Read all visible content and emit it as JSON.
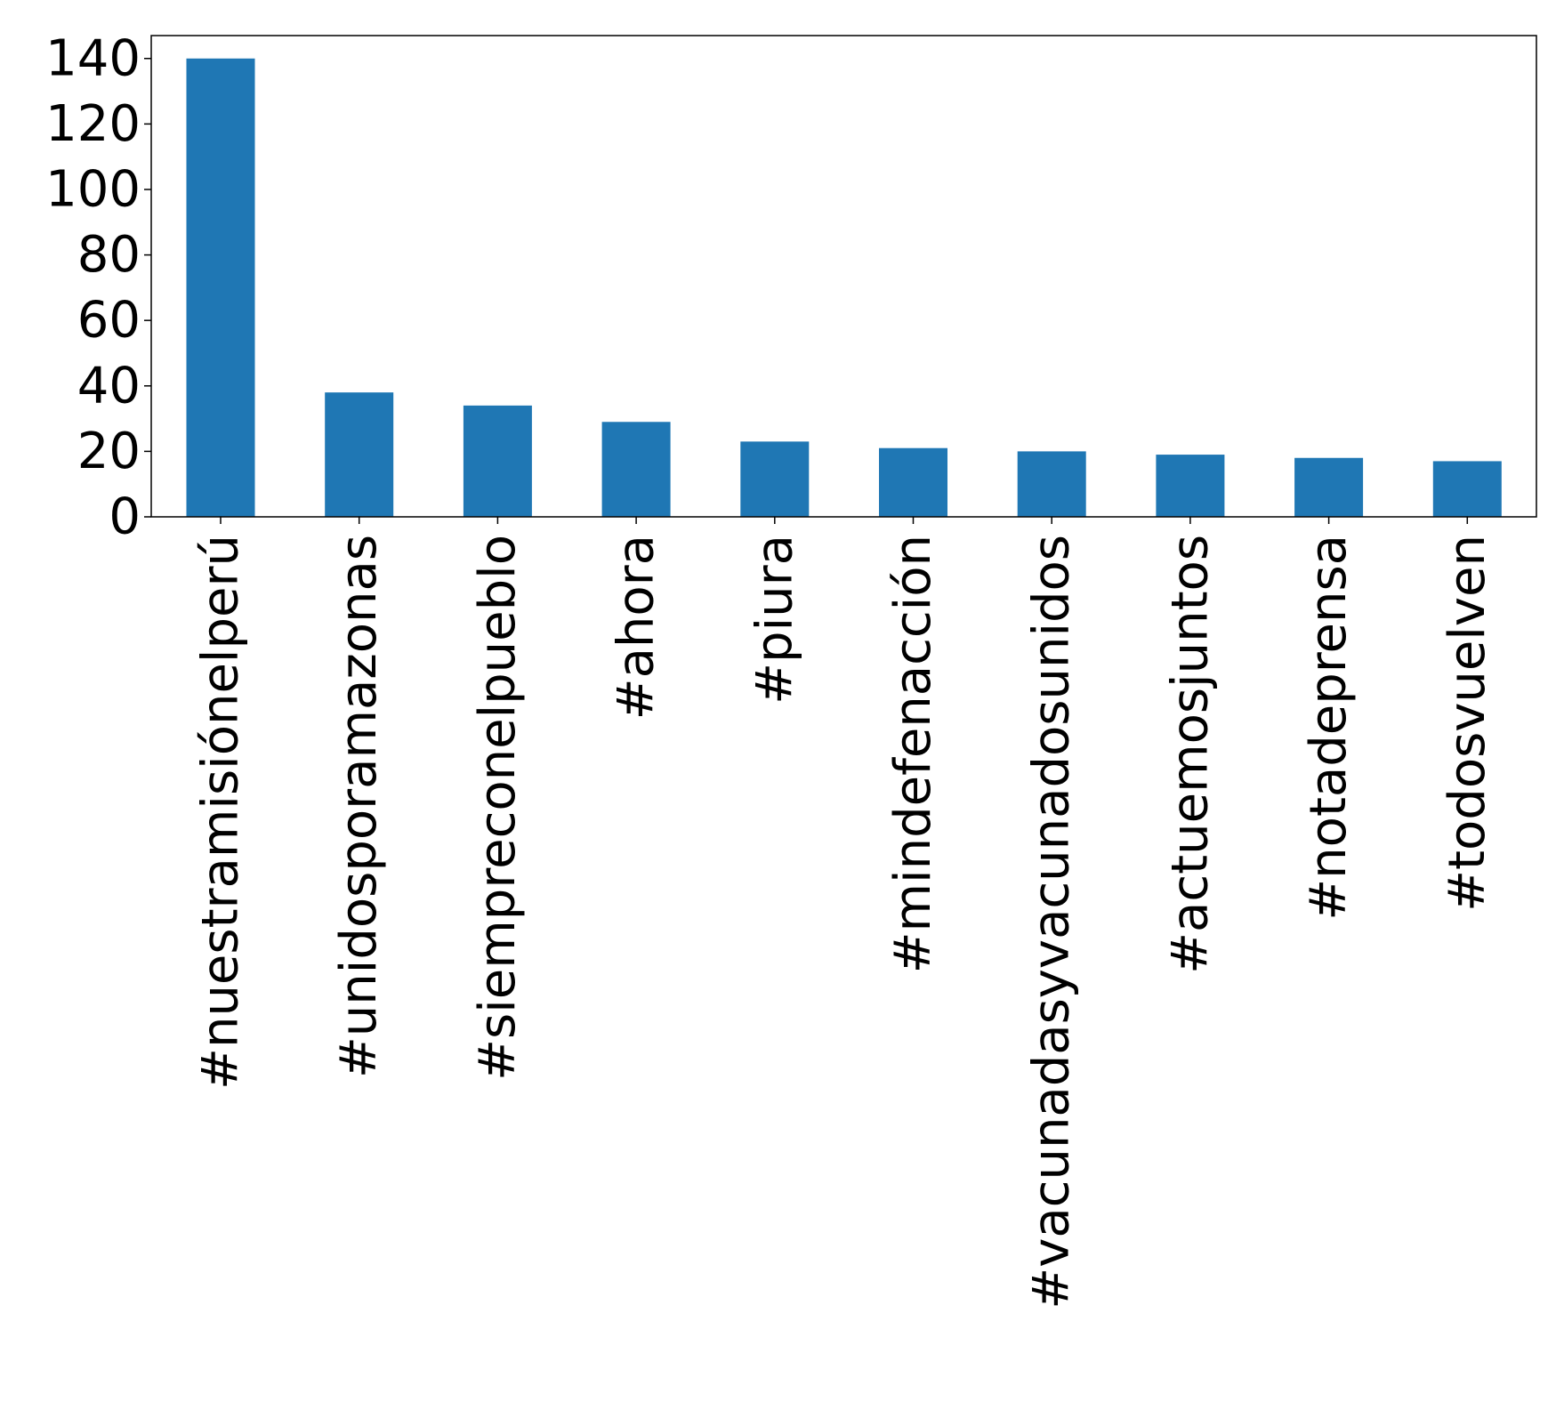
{
  "chart_data": {
    "type": "bar",
    "title": "",
    "xlabel": "",
    "ylabel": "",
    "categories": [
      "#nuestramisiónelperú",
      "#unidosporamazonas",
      "#siempreconelpueblo",
      "#ahora",
      "#piura",
      "#mindefenacción",
      "#vacunadasyvacunadosunidos",
      "#actuemosjuntos",
      "#notadeprensa",
      "#todosvuelven"
    ],
    "values": [
      140,
      38,
      34,
      29,
      23,
      21,
      20,
      19,
      18,
      17
    ],
    "ylim": [
      0,
      147
    ],
    "yticks": [
      0,
      20,
      40,
      60,
      80,
      100,
      120,
      140
    ],
    "ytick_labels": [
      "0",
      "20",
      "40",
      "60",
      "80",
      "100",
      "120",
      "140"
    ],
    "bar_color": "#1f77b4",
    "grid": false,
    "legend": "none"
  }
}
